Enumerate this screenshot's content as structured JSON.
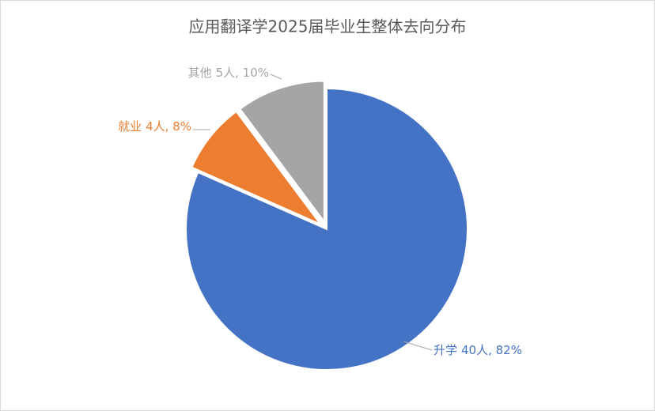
{
  "chart_data": {
    "type": "pie",
    "title": "应用翻译学2025届毕业生整体去向分布",
    "categories": [
      "升学",
      "就业",
      "其他"
    ],
    "values": [
      40,
      4,
      5
    ],
    "value_labels": [
      "40人, 82%",
      "4人, 8%",
      "5人, 10%"
    ],
    "colors": [
      "#4472c4",
      "#ed7d31",
      "#a5a5a5"
    ],
    "exploded": [
      false,
      true,
      true
    ]
  }
}
